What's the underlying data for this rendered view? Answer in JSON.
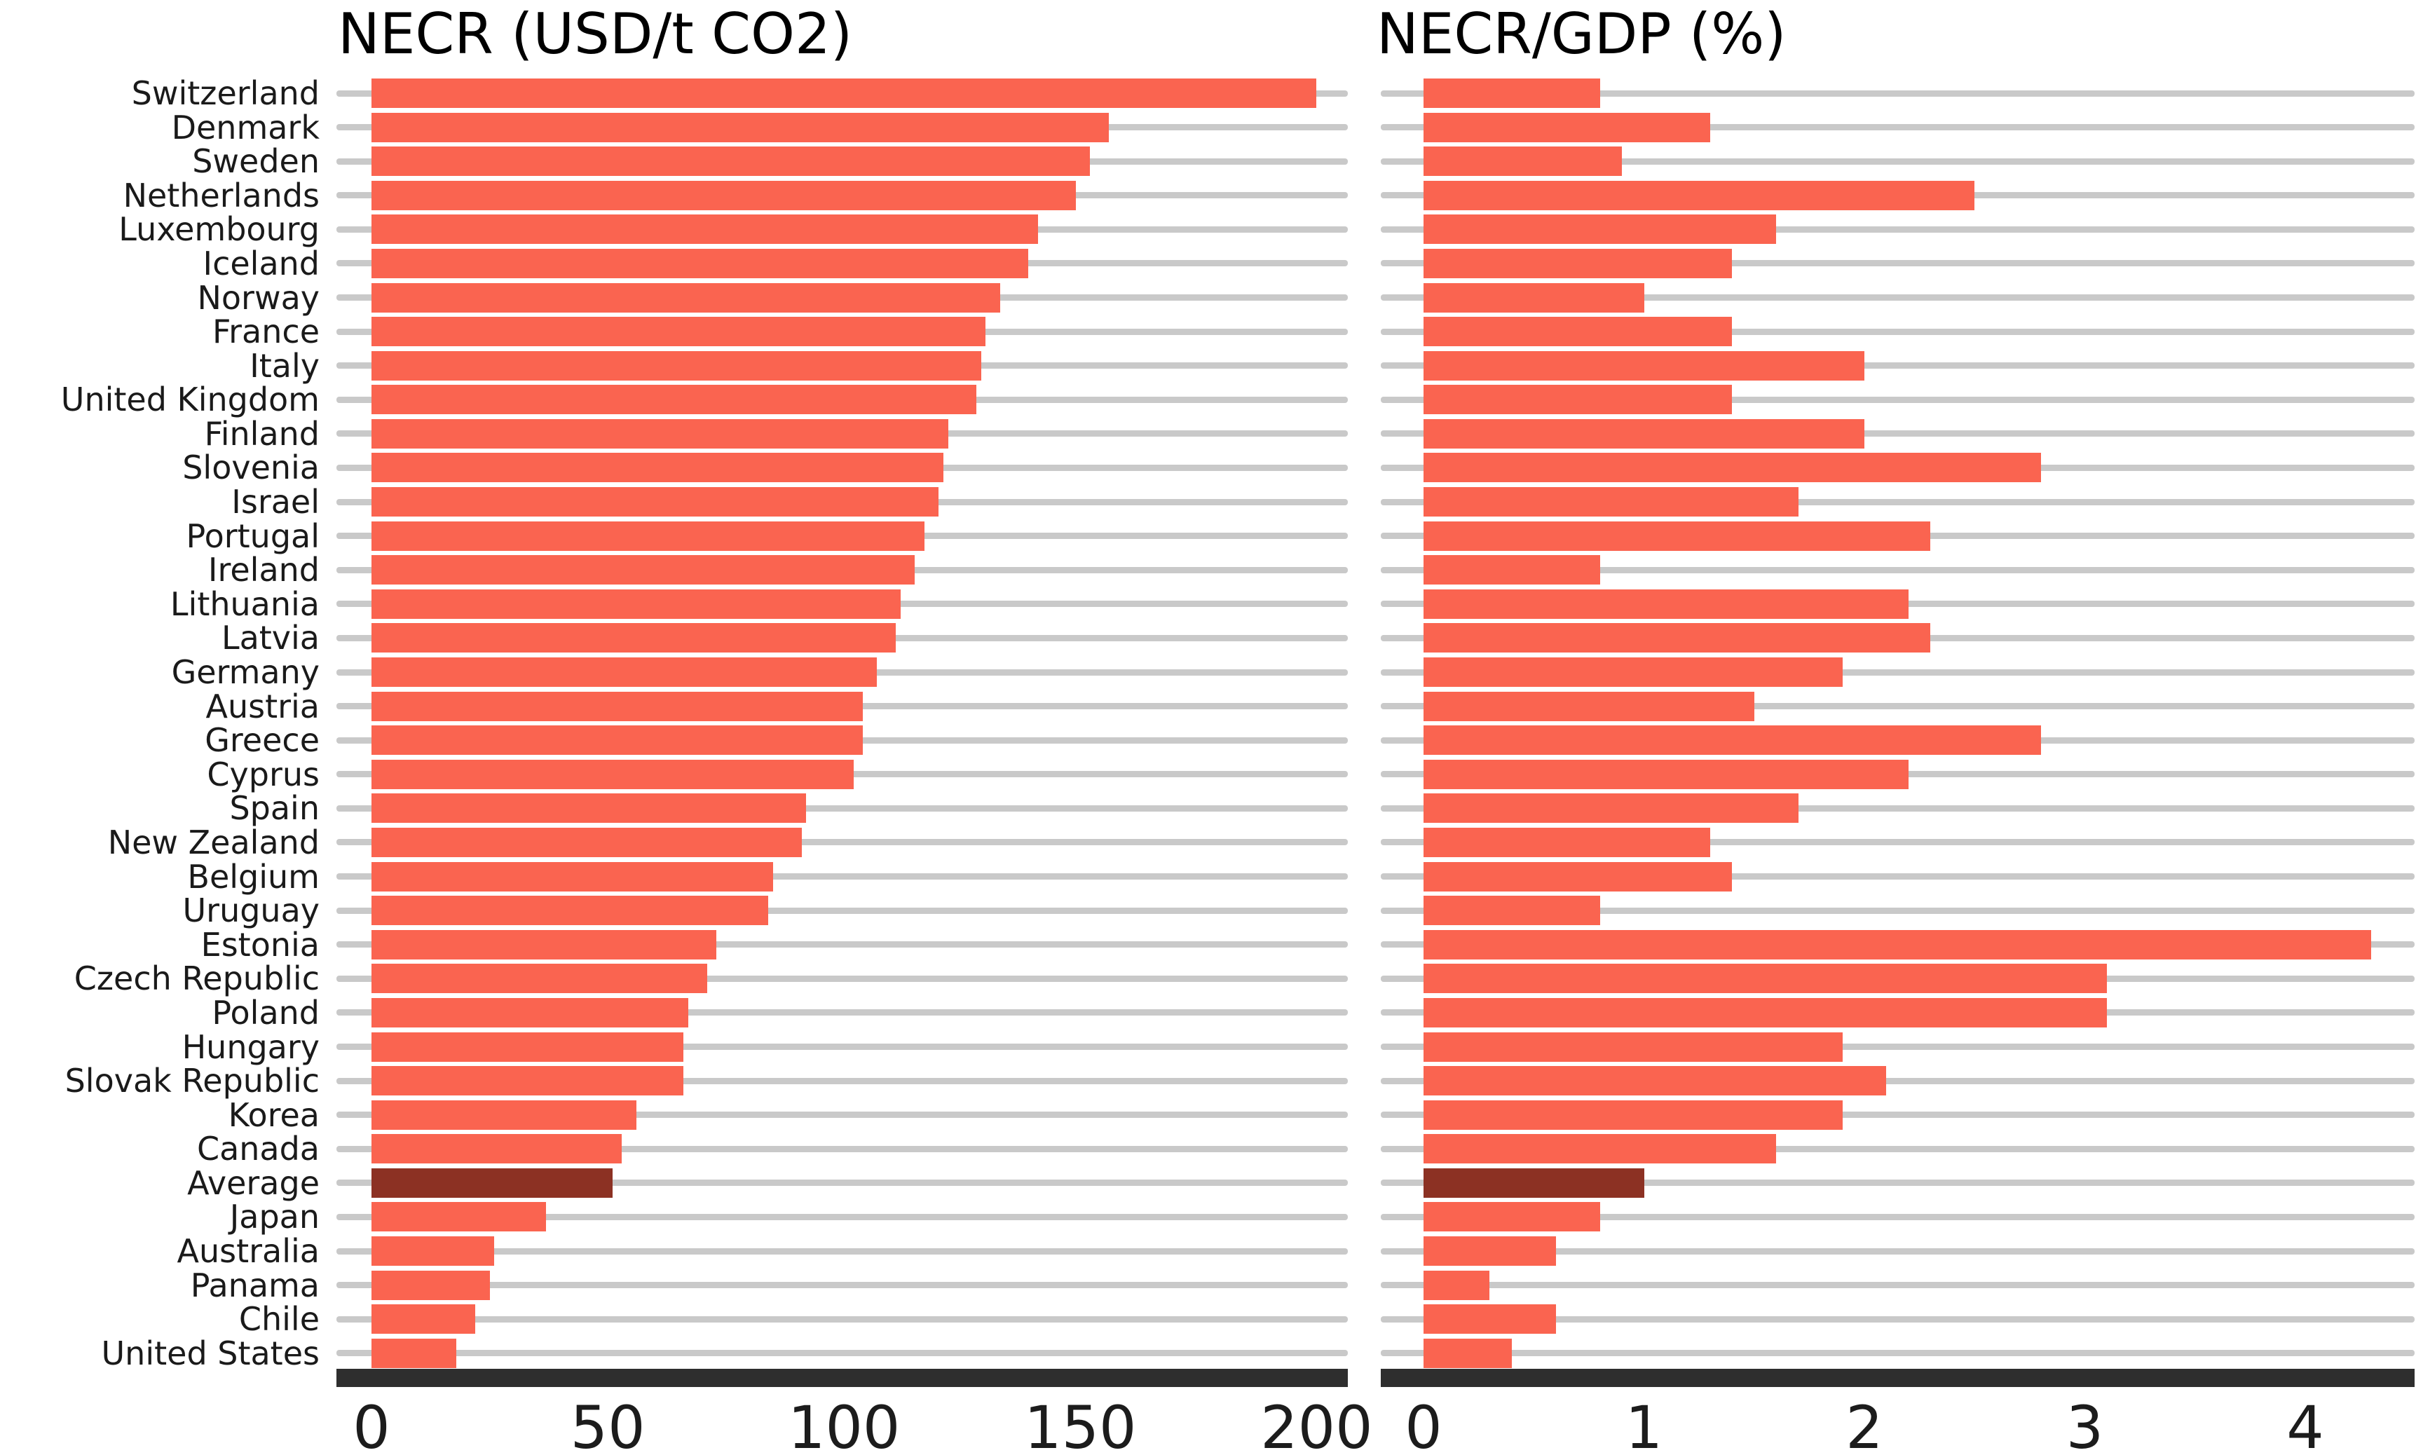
{
  "figure": {
    "background": "#ffffff",
    "grid": true,
    "legend": "none"
  },
  "colors": {
    "bar": "#fa6450",
    "highlight_bar": "#8c3123",
    "gridline": "#c9c9c9",
    "axis_line": "#2e2e2e",
    "label_text": "#1a1a1a",
    "title_text": "#000000"
  },
  "chart_data": [
    {
      "type": "bar",
      "orientation": "horizontal",
      "title": "NECR (USD/t CO2)",
      "xlabel": "",
      "ylabel": "",
      "xlim": [
        0,
        206
      ],
      "xticks": [
        0,
        50,
        100,
        150,
        200
      ],
      "grid": true,
      "highlight_category": "Average",
      "categories": [
        "Switzerland",
        "Denmark",
        "Sweden",
        "Netherlands",
        "Luxembourg",
        "Iceland",
        "Norway",
        "France",
        "Italy",
        "United Kingdom",
        "Finland",
        "Slovenia",
        "Israel",
        "Portugal",
        "Ireland",
        "Lithuania",
        "Latvia",
        "Germany",
        "Austria",
        "Greece",
        "Cyprus",
        "Spain",
        "New Zealand",
        "Belgium",
        "Uruguay",
        "Estonia",
        "Czech Republic",
        "Poland",
        "Hungary",
        "Slovak Republic",
        "Korea",
        "Canada",
        "Average",
        "Japan",
        "Australia",
        "Panama",
        "Chile",
        "United States"
      ],
      "values": [
        200,
        156,
        152,
        149,
        141,
        139,
        133,
        130,
        129,
        128,
        122,
        121,
        120,
        117,
        115,
        112,
        111,
        107,
        104,
        104,
        102,
        92,
        91,
        85,
        84,
        73,
        71,
        67,
        66,
        66,
        56,
        53,
        51,
        37,
        26,
        25,
        22,
        18
      ]
    },
    {
      "type": "bar",
      "orientation": "horizontal",
      "title": "NECR/GDP (%)",
      "xlabel": "",
      "ylabel": "",
      "xlim": [
        0,
        4.5
      ],
      "xticks": [
        0,
        1,
        2,
        3,
        4
      ],
      "grid": true,
      "highlight_category": "Average",
      "categories": [
        "Switzerland",
        "Denmark",
        "Sweden",
        "Netherlands",
        "Luxembourg",
        "Iceland",
        "Norway",
        "France",
        "Italy",
        "United Kingdom",
        "Finland",
        "Slovenia",
        "Israel",
        "Portugal",
        "Ireland",
        "Lithuania",
        "Latvia",
        "Germany",
        "Austria",
        "Greece",
        "Cyprus",
        "Spain",
        "New Zealand",
        "Belgium",
        "Uruguay",
        "Estonia",
        "Czech Republic",
        "Poland",
        "Hungary",
        "Slovak Republic",
        "Korea",
        "Canada",
        "Average",
        "Japan",
        "Australia",
        "Panama",
        "Chile",
        "United States"
      ],
      "values": [
        0.8,
        1.3,
        0.9,
        2.5,
        1.6,
        1.4,
        1.0,
        1.4,
        2.0,
        1.4,
        2.0,
        2.8,
        1.7,
        2.3,
        0.8,
        2.2,
        2.3,
        1.9,
        1.5,
        2.8,
        2.2,
        1.7,
        1.3,
        1.4,
        0.8,
        4.3,
        3.1,
        3.1,
        1.9,
        2.1,
        1.9,
        1.6,
        1.0,
        0.8,
        0.6,
        0.3,
        0.6,
        0.4
      ]
    }
  ]
}
